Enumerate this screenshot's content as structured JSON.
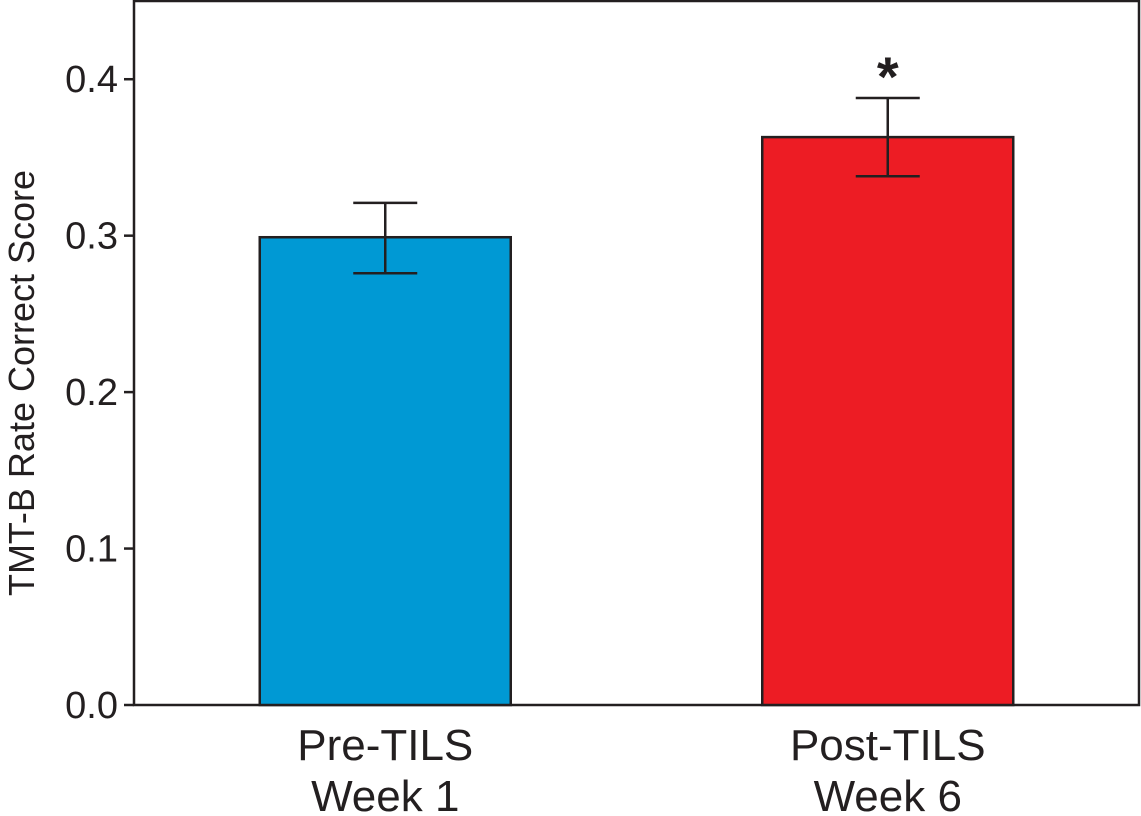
{
  "chart_data": {
    "type": "bar",
    "title": "",
    "xlabel": "",
    "ylabel": "TMT-B Rate Correct Score",
    "ylim": [
      0,
      0.45
    ],
    "yticks": [
      "0.0",
      "0.1",
      "0.2",
      "0.3",
      "0.4"
    ],
    "ytick_values": [
      0,
      0.1,
      0.2,
      0.3,
      0.4
    ],
    "grid": false,
    "legend": "none",
    "categories": [
      {
        "line1": "Pre-TILS",
        "line2": "Week 1"
      },
      {
        "line1": "Post-TILS",
        "line2": "Week 6"
      }
    ],
    "values": [
      0.299,
      0.363
    ],
    "error_low": [
      0.276,
      0.338
    ],
    "error_high": [
      0.321,
      0.388
    ],
    "colors": [
      "#0099d4",
      "#ed1c24"
    ],
    "annotations": [
      "",
      "*"
    ]
  }
}
